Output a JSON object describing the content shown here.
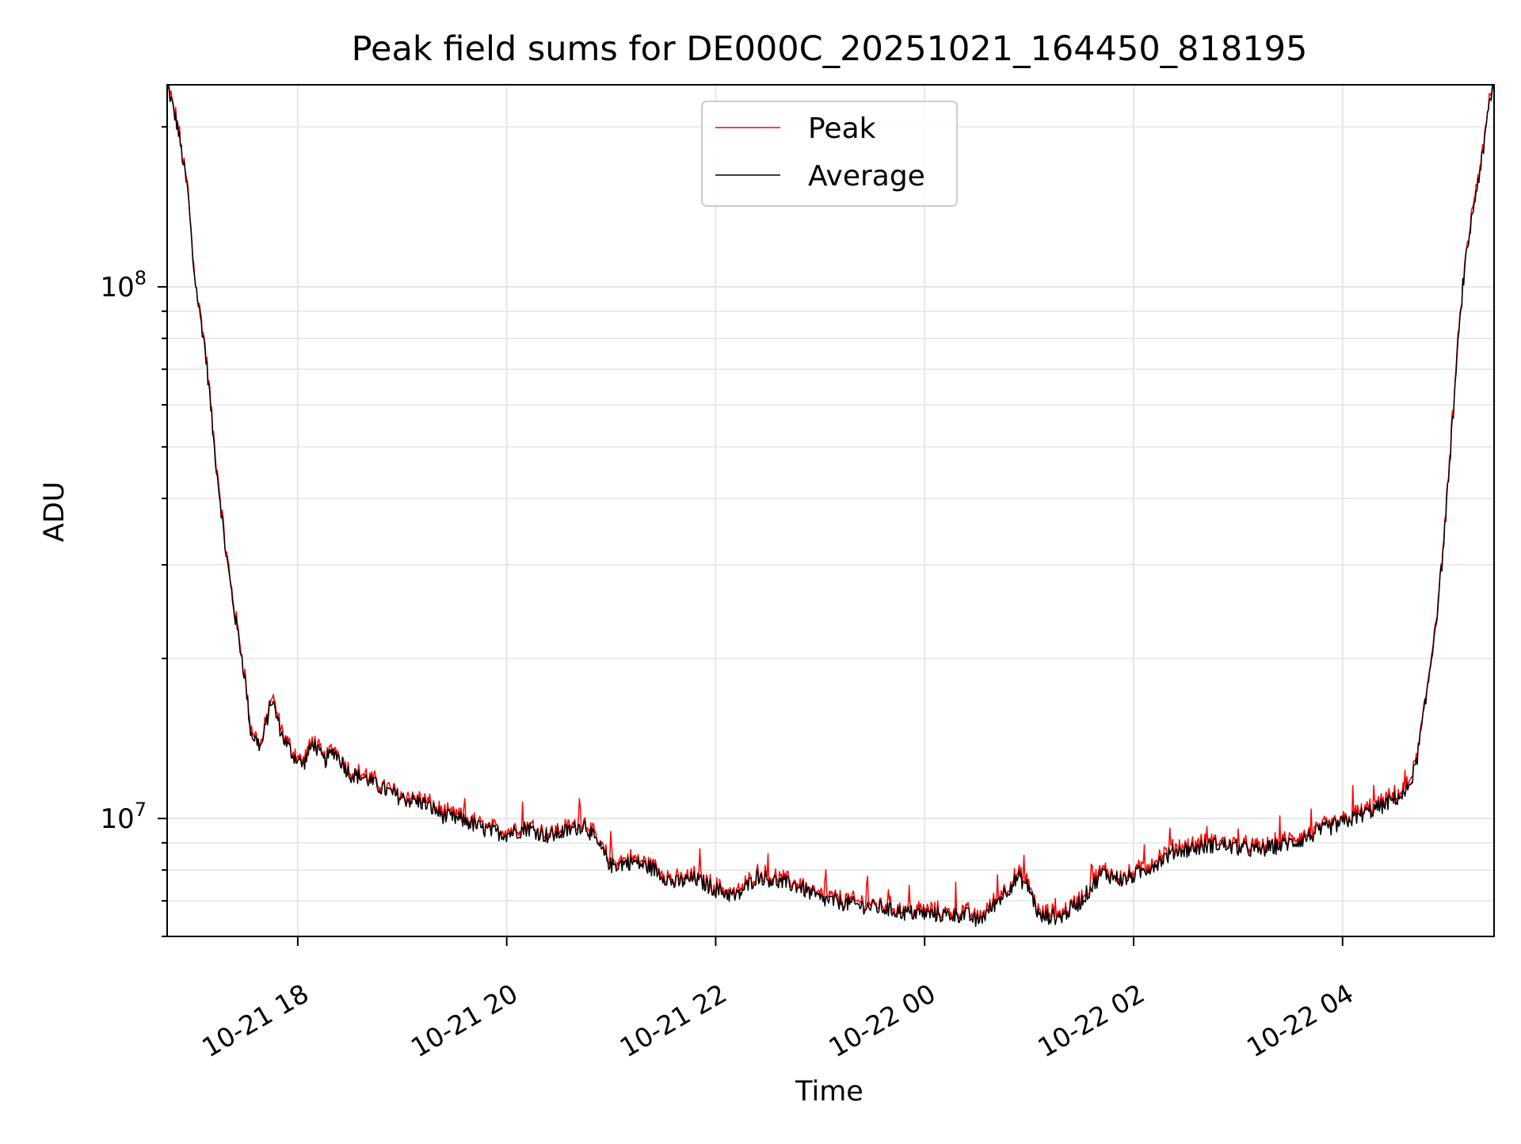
{
  "chart_data": {
    "type": "line",
    "title": "Peak field sums for DE000C_20251021_164450_818195",
    "xlabel": "Time",
    "ylabel": "ADU",
    "yscale": "log",
    "ylim": [
      6000000,
      240000000
    ],
    "xlim_hours": [
      16.75,
      29.45
    ],
    "grid": true,
    "legend_position": "top-center",
    "x_ticks": [
      {
        "label": "10-21 18",
        "hour": 18
      },
      {
        "label": "10-21 20",
        "hour": 20
      },
      {
        "label": "10-21 22",
        "hour": 22
      },
      {
        "label": "10-22 00",
        "hour": 24
      },
      {
        "label": "10-22 02",
        "hour": 26
      },
      {
        "label": "10-22 04",
        "hour": 28
      }
    ],
    "y_ticks": [
      {
        "base": "10",
        "exp": "7",
        "value": 10000000
      },
      {
        "base": "10",
        "exp": "8",
        "value": 100000000
      }
    ],
    "series": [
      {
        "name": "Average",
        "color": "#000000",
        "x_hours": [
          16.75,
          16.85,
          16.95,
          17.0,
          17.05,
          17.1,
          17.15,
          17.2,
          17.25,
          17.3,
          17.35,
          17.4,
          17.45,
          17.5,
          17.55,
          17.65,
          17.75,
          17.85,
          17.95,
          18.05,
          18.15,
          18.25,
          18.35,
          18.5,
          18.65,
          18.8,
          19.0,
          19.2,
          19.4,
          19.6,
          19.8,
          20.0,
          20.2,
          20.4,
          20.6,
          20.75,
          20.9,
          21.0,
          21.2,
          21.4,
          21.6,
          21.8,
          22.0,
          22.2,
          22.4,
          22.6,
          22.8,
          23.0,
          23.2,
          23.4,
          23.6,
          23.8,
          24.0,
          24.2,
          24.4,
          24.5,
          24.6,
          24.75,
          24.9,
          25.0,
          25.1,
          25.2,
          25.3,
          25.5,
          25.7,
          25.9,
          26.0,
          26.2,
          26.4,
          26.6,
          26.8,
          27.0,
          27.2,
          27.4,
          27.6,
          27.8,
          28.0,
          28.2,
          28.4,
          28.5,
          28.6,
          28.7,
          28.8,
          28.85,
          28.9,
          28.95,
          29.0,
          29.05,
          29.1,
          29.15,
          29.2,
          29.25,
          29.3,
          29.35,
          29.4,
          29.45
        ],
        "values": [
          240000000,
          200000000,
          150000000,
          110000000,
          92000000,
          80000000,
          65000000,
          50000000,
          41000000,
          33000000,
          28000000,
          24000000,
          21000000,
          18000000,
          14500000,
          13600000,
          16800000,
          14300000,
          13200000,
          12600000,
          13900000,
          12800000,
          13400000,
          12100000,
          11900000,
          11400000,
          10900000,
          10700000,
          10100000,
          9900000,
          9500000,
          9350000,
          9600000,
          9250000,
          9500000,
          9750000,
          8750000,
          8150000,
          8300000,
          8050000,
          7550000,
          7700000,
          7350000,
          7120000,
          7800000,
          7600000,
          7450000,
          7050000,
          6950000,
          6850000,
          6780000,
          6650000,
          6620000,
          6580000,
          6600000,
          6400000,
          6650000,
          7200000,
          7750000,
          7400000,
          6500000,
          6550000,
          6520000,
          7000000,
          7900000,
          7650000,
          7800000,
          8200000,
          8700000,
          8800000,
          8950000,
          8800000,
          8700000,
          8900000,
          9100000,
          9500000,
          9800000,
          10200000,
          10600000,
          10900000,
          11100000,
          12500000,
          16800000,
          20000000,
          24000000,
          30000000,
          40000000,
          55000000,
          75000000,
          100000000,
          120000000,
          140000000,
          160000000,
          180000000,
          220000000,
          240000000
        ]
      },
      {
        "name": "Peak",
        "color": "#ff0000",
        "linked_to": "Average",
        "spike_hours": [
          19.6,
          20.15,
          20.7,
          21.0,
          21.85,
          22.5,
          23.05,
          23.45,
          23.65,
          23.85,
          24.3,
          24.7,
          24.95,
          25.25,
          25.6,
          26.1,
          26.35,
          26.7,
          27.0,
          27.4,
          27.7,
          28.1,
          28.3,
          28.6
        ],
        "spike_factor": 1.12
      }
    ]
  }
}
